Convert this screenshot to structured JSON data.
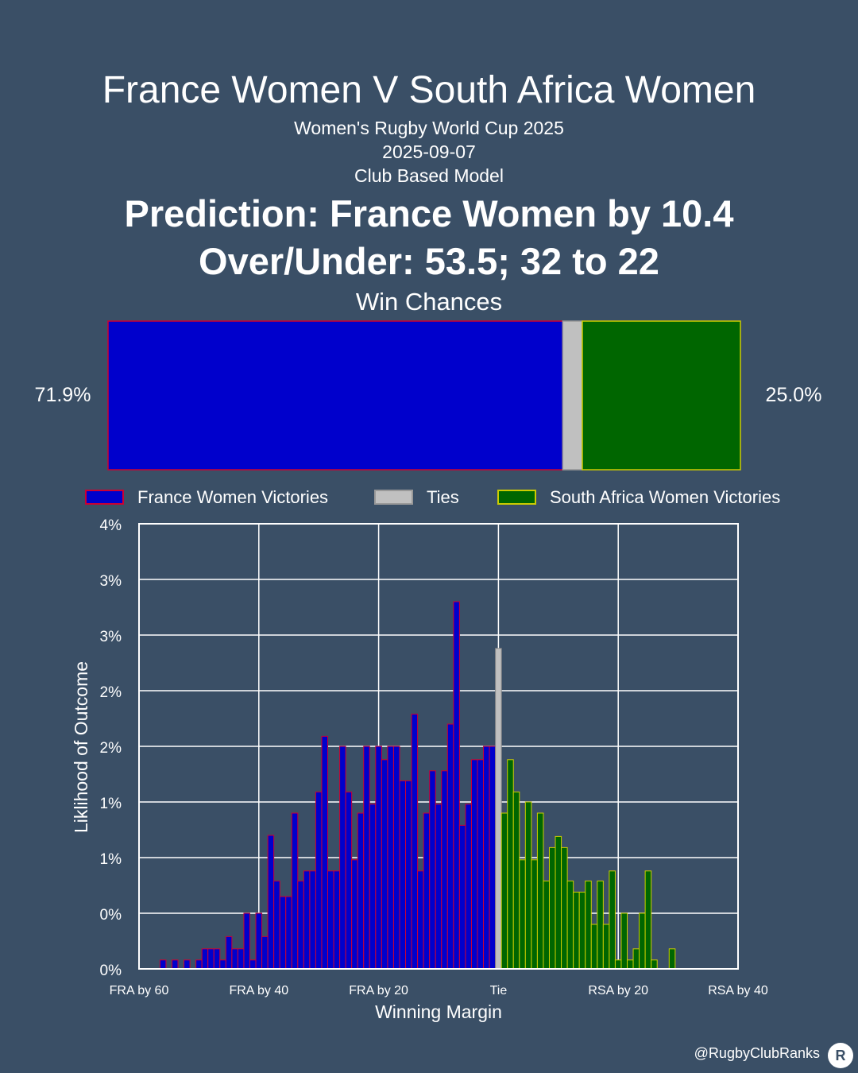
{
  "header": {
    "title": "France Women V South Africa Women",
    "subtitle": "Women's Rugby World Cup 2025",
    "date": "2025-09-07",
    "model": "Club Based Model",
    "prediction": "Prediction: France Women by 10.4",
    "over_under": "Over/Under: 53.5; 32 to 22"
  },
  "win_chances": {
    "title": "Win Chances",
    "home_pct_label": "71.9%",
    "away_pct_label": "25.0%",
    "home": 71.9,
    "tie": 3.1,
    "away": 25.0
  },
  "colors": {
    "background": "#3a4f66",
    "home_fill": "#0000cc",
    "home_edge": "#cc0033",
    "tie_fill": "#c0c0c0",
    "away_fill": "#006600",
    "away_edge": "#cccc00",
    "grid": "#ffffff"
  },
  "chart_data": {
    "type": "bar",
    "title": "",
    "xlabel": "Winning Margin",
    "ylabel": "Liklihood of Outcome",
    "xlim": [
      -60,
      40
    ],
    "ylim": [
      0,
      4
    ],
    "x_ticks": [
      {
        "value": -60,
        "label": "FRA by 60"
      },
      {
        "value": -40,
        "label": "FRA by 40"
      },
      {
        "value": -20,
        "label": "FRA by 20"
      },
      {
        "value": 0,
        "label": "Tie"
      },
      {
        "value": 20,
        "label": "RSA by 20"
      },
      {
        "value": 40,
        "label": "RSA by 40"
      }
    ],
    "y_ticks": [
      {
        "value": 0,
        "label": "0%"
      },
      {
        "value": 0.5,
        "label": "0%"
      },
      {
        "value": 1.0,
        "label": "1%"
      },
      {
        "value": 1.5,
        "label": "1%"
      },
      {
        "value": 2.0,
        "label": "2%"
      },
      {
        "value": 2.5,
        "label": "2%"
      },
      {
        "value": 3.0,
        "label": "3%"
      },
      {
        "value": 3.5,
        "label": "3%"
      },
      {
        "value": 4.0,
        "label": "4%"
      }
    ],
    "legend_position": "top",
    "series": [
      {
        "name": "France Women Victories",
        "x": [
          -56,
          -54,
          -52,
          -50,
          -49,
          -48,
          -47,
          -46,
          -45,
          -44,
          -43,
          -42,
          -41,
          -40,
          -39,
          -38,
          -37,
          -36,
          -35,
          -34,
          -33,
          -32,
          -31,
          -30,
          -29,
          -28,
          -27,
          -26,
          -25,
          -24,
          -23,
          -22,
          -21,
          -20,
          -19,
          -18,
          -17,
          -16,
          -15,
          -14,
          -13,
          -12,
          -11,
          -10,
          -9,
          -8,
          -7,
          -6,
          -5,
          -4,
          -3,
          -2,
          -1
        ],
        "values": [
          0.08,
          0.08,
          0.08,
          0.08,
          0.18,
          0.18,
          0.18,
          0.08,
          0.29,
          0.18,
          0.18,
          0.5,
          0.08,
          0.5,
          0.29,
          1.2,
          0.79,
          0.65,
          0.65,
          1.4,
          0.79,
          0.88,
          0.88,
          1.59,
          2.09,
          0.88,
          0.88,
          2.0,
          1.59,
          0.98,
          1.4,
          2.0,
          1.48,
          2.0,
          1.88,
          2.0,
          2.0,
          1.69,
          1.69,
          2.29,
          0.88,
          1.4,
          1.78,
          1.48,
          1.78,
          2.2,
          3.3,
          1.29,
          1.48,
          1.88,
          1.88,
          2.0,
          2.0
        ]
      },
      {
        "name": "Ties",
        "x": [
          0
        ],
        "values": [
          2.88
        ]
      },
      {
        "name": "South Africa Women Victories",
        "x": [
          1,
          2,
          3,
          4,
          5,
          6,
          7,
          8,
          9,
          10,
          11,
          12,
          13,
          14,
          15,
          16,
          17,
          18,
          19,
          20,
          21,
          22,
          23,
          24,
          25,
          26,
          27,
          28,
          29
        ],
        "values": [
          1.4,
          1.88,
          1.59,
          0.98,
          1.5,
          0.98,
          1.4,
          0.79,
          1.09,
          1.19,
          1.09,
          0.79,
          0.69,
          0.69,
          0.79,
          0.4,
          0.79,
          0.4,
          0.88,
          0.08,
          0.5,
          0.08,
          0.18,
          0.5,
          0.88,
          0.08,
          0.0,
          0.0,
          0.18
        ]
      }
    ]
  },
  "footer": {
    "handle": "@RugbyClubRanks",
    "logo_text": "R"
  }
}
